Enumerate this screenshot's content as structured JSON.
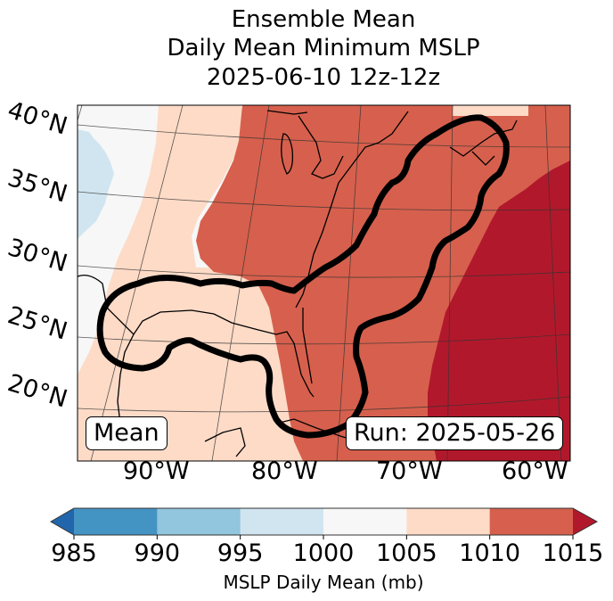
{
  "title": {
    "line1": "Ensemble Mean",
    "line2": "Daily Mean Minimum MSLP",
    "line3": "2025-06-10 12z-12z"
  },
  "map": {
    "projection": "Lambert conformal (conic)",
    "region": "Eastern United States, Gulf of Mexico and western Atlantic",
    "lat_labels": [
      "40°N",
      "35°N",
      "30°N",
      "25°N",
      "20°N"
    ],
    "lon_labels": [
      "90°W",
      "80°W",
      "70°W",
      "60°W"
    ],
    "annotations": {
      "left": "Mean",
      "right": "Run: 2025-05-26"
    },
    "field_bands_west_to_east": [
      {
        "range_mb": "995-1000",
        "location": "far northwest edge (Plains)"
      },
      {
        "range_mb": "1000-1005",
        "location": "western strip"
      },
      {
        "range_mb": "1005-1010",
        "location": "central Plains, Texas, Gulf of Mexico, Mexico"
      },
      {
        "range_mb": "1010-1015",
        "location": "Midwest, Great Lakes, East Coast, Florida, Caribbean"
      },
      {
        "range_mb": ">1015",
        "location": "western Atlantic east of ~72°W"
      }
    ],
    "contour": "Thick black contour enclosing Gulf Coast and East Coast corridor up to Nova Scotia"
  },
  "colorbar": {
    "label": "MSLP Daily Mean (mb)",
    "ticks": [
      "985",
      "990",
      "995",
      "1000",
      "1005",
      "1010",
      "1015"
    ],
    "extend": "both",
    "colors": {
      "under": "#2166ac",
      "985-990": "#4393c3",
      "990-995": "#92c5de",
      "995-1000": "#d1e5f0",
      "1000-1005": "#f7f7f7",
      "1005-1010": "#fddbc7",
      "1010-1015": "#d6604d",
      "over": "#b2182b"
    }
  }
}
